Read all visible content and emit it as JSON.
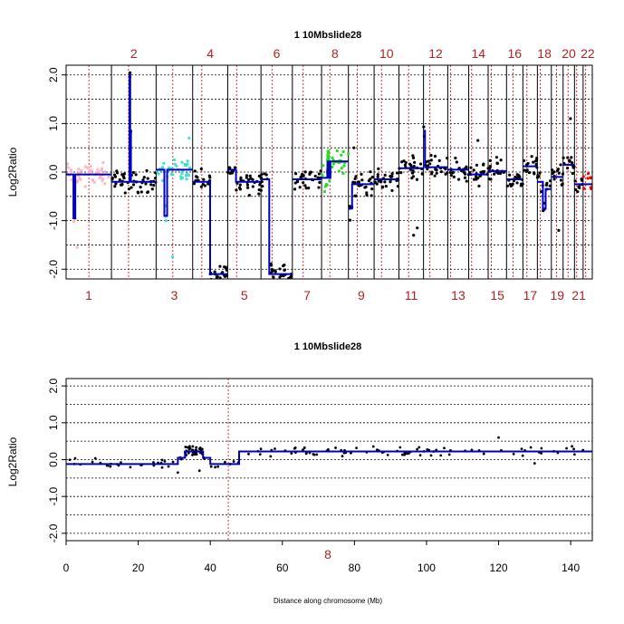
{
  "colors": {
    "segment": "#0000bb",
    "chrom_label": "#b22222",
    "centromere": "#cc0000",
    "grid": "#000000",
    "points_default": "#000000",
    "chr1_points": "#ffb6c1",
    "chr3_points": "#40e0d0",
    "chr8_points": "#22dd22",
    "chr22_points": "#ff0000"
  },
  "chart_data": [
    {
      "type": "scatter",
      "title": "1   10Mbslide28",
      "ylabel": "Log2Ratio",
      "xlabel": "",
      "ylim": [
        -2.2,
        2.2
      ],
      "yticks": [
        -2.0,
        -1.0,
        0.0,
        1.0,
        2.0
      ],
      "ytick_labels": [
        "-2.0",
        "-1.0",
        "0.0",
        "1.0",
        "2.0"
      ],
      "grid": "dotted horizontal",
      "chromosomes_top": [
        "2",
        "4",
        "6",
        "8",
        "10",
        "12",
        "14",
        "16",
        "18",
        "20",
        "22"
      ],
      "chromosomes_bottom": [
        "1",
        "3",
        "5",
        "7",
        "9",
        "11",
        "13",
        "15",
        "17",
        "19",
        "21"
      ],
      "chromosome_widths": [
        247,
        243,
        199,
        191,
        181,
        171,
        159,
        146,
        140,
        135,
        134,
        132,
        114,
        106,
        100,
        89,
        79,
        76,
        64,
        62,
        47,
        50
      ],
      "centromeres": [
        124,
        93,
        91,
        50,
        48,
        60,
        59,
        45,
        49,
        40,
        53,
        35,
        16,
        16,
        17,
        36,
        22,
        16,
        28,
        27,
        12,
        14
      ],
      "segments": [
        {
          "chrom": 1,
          "pieces": [
            [
              0,
              40,
              -0.05
            ],
            [
              40,
              50,
              -0.95
            ],
            [
              50,
              90,
              -0.05
            ],
            [
              90,
              247,
              -0.05
            ]
          ]
        },
        {
          "chrom": 2,
          "pieces": [
            [
              0,
              98,
              -0.2
            ],
            [
              98,
              102,
              2.0
            ],
            [
              102,
              106,
              0.85
            ],
            [
              106,
              243,
              -0.2
            ]
          ]
        },
        {
          "chrom": 3,
          "pieces": [
            [
              0,
              45,
              0.05
            ],
            [
              45,
              52,
              -0.9
            ],
            [
              52,
              60,
              -0.9
            ],
            [
              60,
              199,
              0.05
            ]
          ]
        },
        {
          "chrom": 4,
          "pieces": [
            [
              0,
              95,
              -0.2
            ],
            [
              95,
              100,
              -2.1
            ],
            [
              100,
              191,
              -2.1
            ]
          ]
        },
        {
          "chrom": 5,
          "pieces": [
            [
              0,
              45,
              0.05
            ],
            [
              45,
              181,
              -0.2
            ]
          ]
        },
        {
          "chrom": 6,
          "pieces": [
            [
              0,
              45,
              -0.15
            ],
            [
              45,
              55,
              -2.1
            ],
            [
              55,
              171,
              -2.1
            ]
          ]
        },
        {
          "chrom": 7,
          "pieces": [
            [
              0,
              159,
              -0.15
            ]
          ]
        },
        {
          "chrom": 8,
          "pieces": [
            [
              0,
              31,
              -0.12
            ],
            [
              31,
              33,
              0.05
            ],
            [
              33,
              38,
              0.22
            ],
            [
              38,
              40,
              0.05
            ],
            [
              40,
              48,
              -0.12
            ],
            [
              48,
              146,
              0.22
            ]
          ]
        },
        {
          "chrom": 9,
          "pieces": [
            [
              0,
              20,
              -0.75
            ],
            [
              20,
              140,
              -0.25
            ]
          ]
        },
        {
          "chrom": 10,
          "pieces": [
            [
              0,
              135,
              -0.15
            ]
          ]
        },
        {
          "chrom": 11,
          "pieces": [
            [
              0,
              134,
              0.08
            ]
          ]
        },
        {
          "chrom": 12,
          "pieces": [
            [
              0,
              8,
              0.85
            ],
            [
              8,
              132,
              0.1
            ]
          ]
        },
        {
          "chrom": 13,
          "pieces": [
            [
              0,
              114,
              0.05
            ]
          ]
        },
        {
          "chrom": 14,
          "pieces": [
            [
              0,
              106,
              -0.05
            ]
          ]
        },
        {
          "chrom": 15,
          "pieces": [
            [
              0,
              100,
              0.02
            ]
          ]
        },
        {
          "chrom": 16,
          "pieces": [
            [
              0,
              89,
              -0.15
            ]
          ]
        },
        {
          "chrom": 17,
          "pieces": [
            [
              0,
              79,
              0.12
            ]
          ]
        },
        {
          "chrom": 18,
          "pieces": [
            [
              0,
              30,
              -0.2
            ],
            [
              30,
              45,
              -0.75
            ],
            [
              45,
              76,
              -0.35
            ]
          ]
        },
        {
          "chrom": 19,
          "pieces": [
            [
              0,
              64,
              -0.1
            ]
          ]
        },
        {
          "chrom": 20,
          "pieces": [
            [
              0,
              62,
              0.15
            ]
          ]
        },
        {
          "chrom": 21,
          "pieces": [
            [
              0,
              47,
              -0.25
            ]
          ]
        },
        {
          "chrom": 22,
          "pieces": [
            [
              0,
              50,
              -0.25
            ]
          ]
        }
      ],
      "outliers": [
        {
          "chrom": 1,
          "x": 60,
          "y": -1.55
        },
        {
          "chrom": 3,
          "x": 90,
          "y": -1.75
        },
        {
          "chrom": 3,
          "x": 180,
          "y": 0.7
        },
        {
          "chrom": 9,
          "x": 30,
          "y": 0.5
        },
        {
          "chrom": 11,
          "x": 80,
          "y": -1.3
        },
        {
          "chrom": 11,
          "x": 100,
          "y": -1.15
        },
        {
          "chrom": 14,
          "x": 50,
          "y": 0.65
        },
        {
          "chrom": 19,
          "x": 40,
          "y": -1.2
        },
        {
          "chrom": 20,
          "x": 40,
          "y": 1.1
        }
      ]
    },
    {
      "type": "scatter",
      "title": "1   10Mbslide28",
      "ylabel": "Log2Ratio",
      "xlabel": "Distance along chromosome (Mb)",
      "chromosome": "8",
      "xlim": [
        0,
        146
      ],
      "xticks": [
        0,
        20,
        40,
        60,
        80,
        100,
        120,
        140
      ],
      "ylim": [
        -2.2,
        2.2
      ],
      "yticks": [
        -2.0,
        -1.0,
        0.0,
        1.0,
        2.0
      ],
      "ytick_labels": [
        "-2.0",
        "-1.0",
        "0.0",
        "1.0",
        "2.0"
      ],
      "grid": "dotted horizontal",
      "centromere": 45,
      "segments": [
        [
          0,
          31,
          -0.12
        ],
        [
          31,
          33,
          0.05
        ],
        [
          33,
          38,
          0.22
        ],
        [
          38,
          40,
          0.05
        ],
        [
          40,
          48,
          -0.12
        ],
        [
          48,
          146,
          0.22
        ]
      ],
      "outliers": [
        {
          "x": 31,
          "y": -0.35
        },
        {
          "x": 37,
          "y": -0.3
        },
        {
          "x": 120,
          "y": 0.6
        },
        {
          "x": 130,
          "y": -0.1
        }
      ]
    }
  ]
}
